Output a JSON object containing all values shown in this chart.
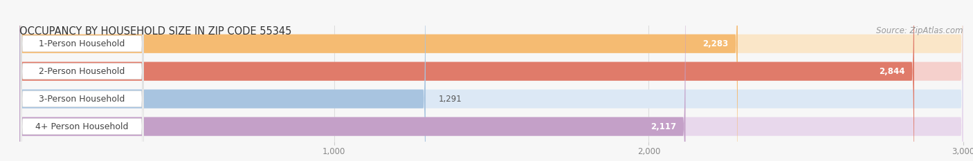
{
  "title": "OCCUPANCY BY HOUSEHOLD SIZE IN ZIP CODE 55345",
  "source": "Source: ZipAtlas.com",
  "categories": [
    "1-Person Household",
    "2-Person Household",
    "3-Person Household",
    "4+ Person Household"
  ],
  "values": [
    2283,
    2844,
    1291,
    2117
  ],
  "bar_colors": [
    "#f5bb72",
    "#e07b6a",
    "#a8c4e0",
    "#c4a0c8"
  ],
  "bar_bg_colors": [
    "#fae6c8",
    "#f5d0cc",
    "#dce8f5",
    "#e8d8ec"
  ],
  "xlim": [
    0,
    3000
  ],
  "xticks": [
    1000,
    2000,
    3000
  ],
  "title_fontsize": 10.5,
  "source_fontsize": 8.5,
  "bar_label_fontsize": 9,
  "tick_fontsize": 8.5,
  "value_fontsize": 8.5,
  "bg_color": "#f7f7f7"
}
